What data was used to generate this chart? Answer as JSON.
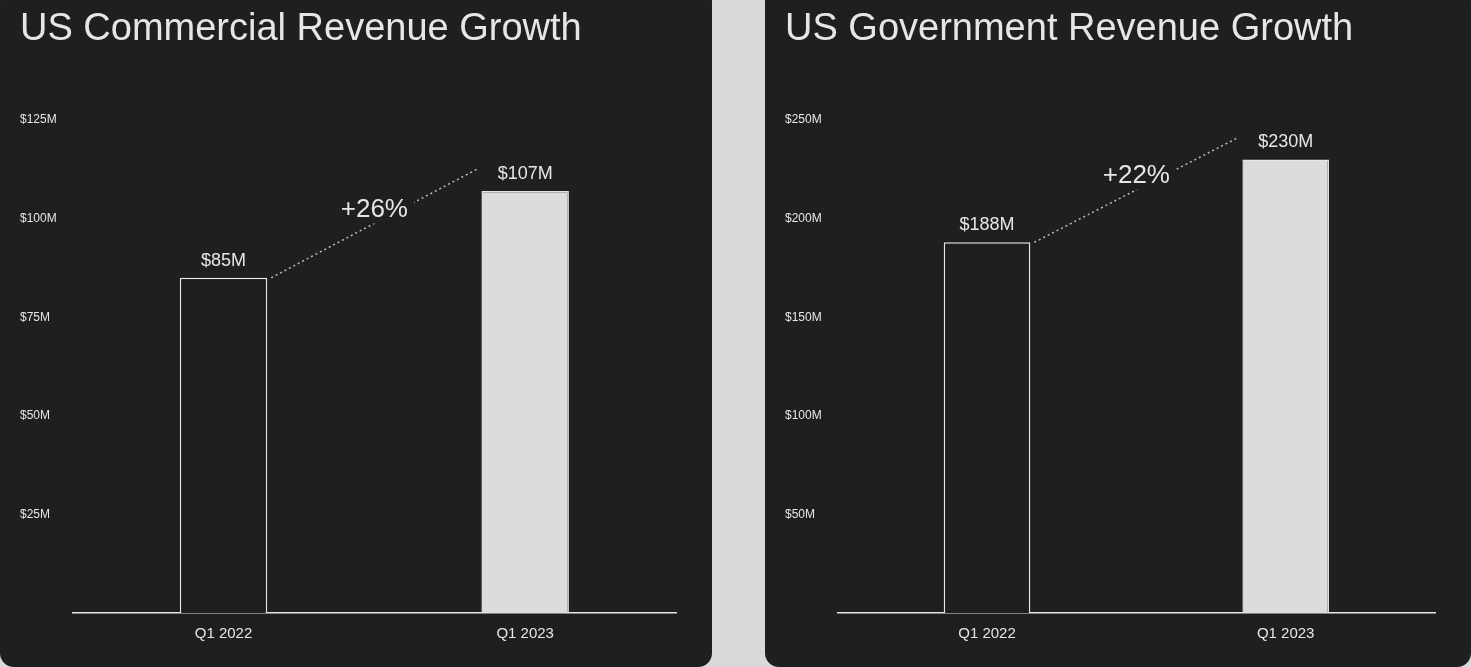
{
  "chart_data": [
    {
      "type": "bar",
      "title": "US Commercial Revenue Growth",
      "categories": [
        "Q1 2022",
        "Q1 2023"
      ],
      "values": [
        85,
        107
      ],
      "colors": [
        "#1e1f21",
        "#dcdcdc"
      ],
      "value_labels": [
        "$85M",
        "$107M"
      ],
      "ylim": [
        0,
        125
      ],
      "yticks": [
        {
          "value": 25,
          "label": "$25M"
        },
        {
          "value": 50,
          "label": "$50M"
        },
        {
          "value": 75,
          "label": "$75M"
        },
        {
          "value": 100,
          "label": "$100M"
        },
        {
          "value": 125,
          "label": "$125M"
        }
      ],
      "annotations": [
        "+26%"
      ]
    },
    {
      "type": "bar",
      "title": "US Government Revenue Growth",
      "categories": [
        "Q1 2022",
        "Q1 2023"
      ],
      "values": [
        188,
        230
      ],
      "colors": [
        "#1e1f21",
        "#dcdcdc"
      ],
      "value_labels": [
        "$188M",
        "$230M"
      ],
      "ylim": [
        0,
        250
      ],
      "yticks": [
        {
          "value": 50,
          "label": "$50M"
        },
        {
          "value": 100,
          "label": "$100M"
        },
        {
          "value": 150,
          "label": "$150M"
        },
        {
          "value": 200,
          "label": "$200M"
        },
        {
          "value": 250,
          "label": "$250M"
        }
      ],
      "annotations": [
        "+22%"
      ]
    }
  ]
}
